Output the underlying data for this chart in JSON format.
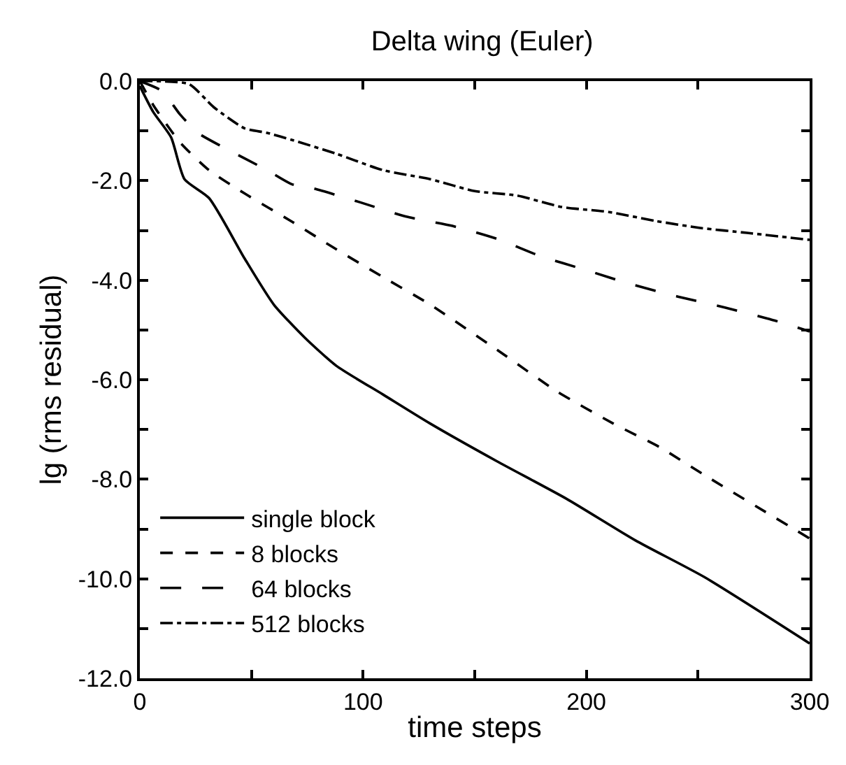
{
  "chart_data": {
    "type": "line",
    "title": "Delta wing (Euler)",
    "xlabel": "time steps",
    "ylabel": "lg (rms residual)",
    "xlim": [
      0,
      300
    ],
    "ylim": [
      -12,
      0
    ],
    "xticks": [
      0,
      {
        "value": 50,
        "label": null
      },
      100,
      {
        "value": 150,
        "label": null
      },
      200,
      {
        "value": 250,
        "label": null
      },
      300
    ],
    "yticks": [
      {
        "value": -12,
        "label": "-12.0"
      },
      {
        "value": -11,
        "label": null
      },
      {
        "value": -10,
        "label": "-10.0"
      },
      {
        "value": -9,
        "label": null
      },
      {
        "value": -8,
        "label": "-8.0"
      },
      {
        "value": -7,
        "label": null
      },
      {
        "value": -6,
        "label": "-6.0"
      },
      {
        "value": -5,
        "label": null
      },
      {
        "value": -4,
        "label": "-4.0"
      },
      {
        "value": -3,
        "label": null
      },
      {
        "value": -2,
        "label": "-2.0"
      },
      {
        "value": -1,
        "label": null
      },
      {
        "value": 0,
        "label": "0.0"
      }
    ],
    "legend": "bottom left",
    "marker": "none",
    "series": [
      {
        "name": "single block",
        "color": "#000000",
        "line_style": "solid",
        "x": [
          0,
          6,
          14,
          20,
          31,
          47,
          60,
          74,
          88,
          109,
          130,
          160,
          191,
          222,
          253,
          300
        ],
        "values": [
          -0.1,
          -0.62,
          -1.13,
          -1.97,
          -2.35,
          -3.57,
          -4.49,
          -5.16,
          -5.72,
          -6.3,
          -6.88,
          -7.64,
          -8.39,
          -9.23,
          -9.97,
          -11.3
        ]
      },
      {
        "name": "8 blocks",
        "color": "#000000",
        "line_style": "dashed",
        "x": [
          0,
          6,
          18,
          31,
          47,
          68,
          88,
          109,
          130,
          160,
          187,
          212,
          233,
          253,
          300
        ],
        "values": [
          0,
          -0.48,
          -1.23,
          -1.79,
          -2.26,
          -2.82,
          -3.38,
          -3.94,
          -4.49,
          -5.4,
          -6.24,
          -6.88,
          -7.36,
          -7.92,
          -9.19
        ]
      },
      {
        "name": "64 blocks",
        "color": "#000000",
        "line_style": "longdash",
        "x": [
          0,
          10,
          18,
          26,
          37,
          57,
          68,
          78,
          99,
          119,
          140,
          160,
          179,
          200,
          220,
          241,
          262,
          282,
          300
        ],
        "values": [
          0,
          -0.2,
          -0.67,
          -1.04,
          -1.32,
          -1.79,
          -2.07,
          -2.16,
          -2.44,
          -2.72,
          -2.91,
          -3.17,
          -3.51,
          -3.8,
          -4.08,
          -4.33,
          -4.55,
          -4.78,
          -5.03
        ]
      },
      {
        "name": "512 blocks",
        "color": "#000000",
        "line_style": "dashdot",
        "x": [
          0,
          22,
          33,
          47,
          57,
          68,
          88,
          109,
          130,
          150,
          169,
          189,
          210,
          231,
          251,
          272,
          300
        ],
        "values": [
          0,
          -0.06,
          -0.52,
          -0.95,
          -1.04,
          -1.18,
          -1.46,
          -1.79,
          -1.97,
          -2.21,
          -2.3,
          -2.53,
          -2.63,
          -2.81,
          -2.95,
          -3.05,
          -3.19
        ]
      }
    ]
  }
}
